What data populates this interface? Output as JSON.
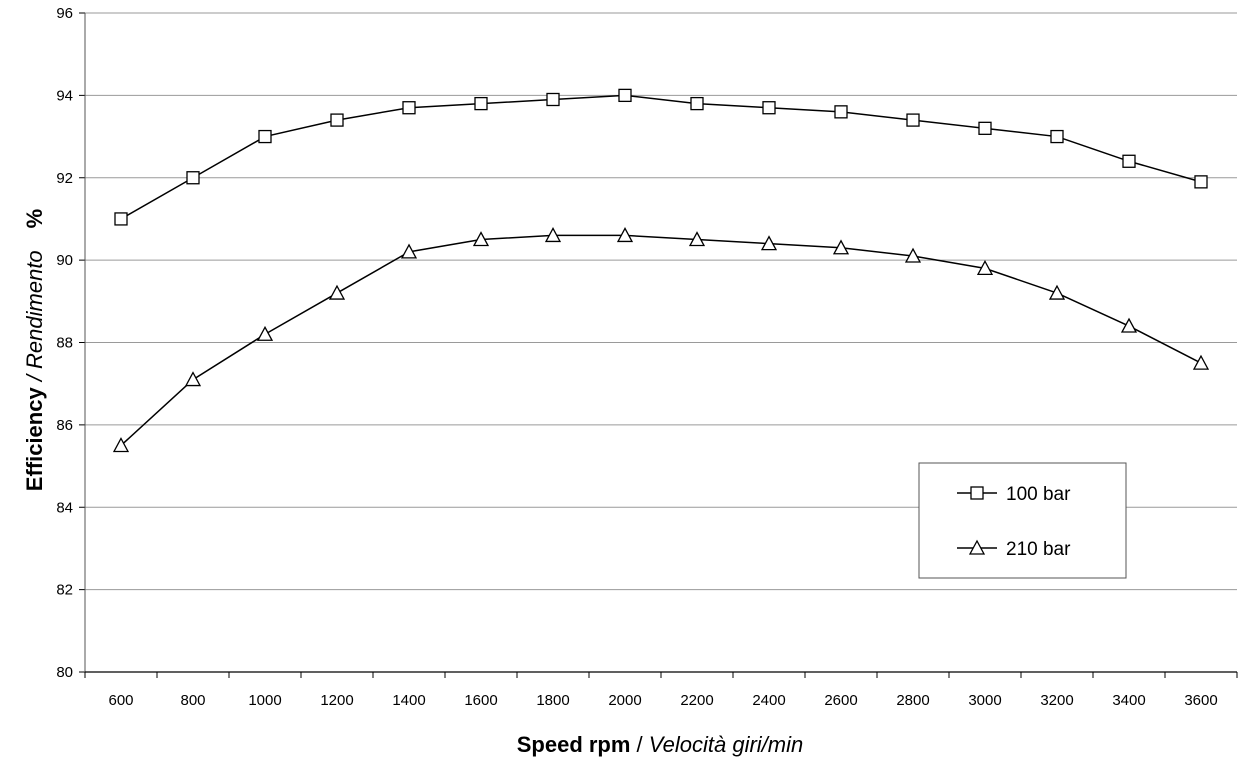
{
  "chart_data": {
    "type": "line",
    "title": "",
    "xlabel": {
      "main": "Speed rpm",
      "separator": " / ",
      "sub": "Velocità giri/min"
    },
    "ylabel": {
      "main": "Efficiency",
      "separator": "  / ",
      "sub": "Rendimento",
      "unit": "%"
    },
    "categories": [
      "600",
      "800",
      "1000",
      "1200",
      "1400",
      "1600",
      "1800",
      "2000",
      "2200",
      "2400",
      "2600",
      "2800",
      "3000",
      "3200",
      "3400",
      "3600"
    ],
    "ylim": [
      80,
      96
    ],
    "yticks": [
      80,
      82,
      84,
      86,
      88,
      90,
      92,
      94,
      96
    ],
    "grid": {
      "horizontal": true,
      "vertical": false
    },
    "legend": {
      "position": "bottom-right"
    },
    "series": [
      {
        "name": "100 bar",
        "marker": "square",
        "values": [
          91.0,
          92.0,
          93.0,
          93.4,
          93.7,
          93.8,
          93.9,
          94.0,
          93.8,
          93.7,
          93.6,
          93.4,
          93.2,
          93.0,
          92.4,
          91.9
        ]
      },
      {
        "name": "210 bar",
        "marker": "triangle",
        "values": [
          85.5,
          87.1,
          88.2,
          89.2,
          90.2,
          90.5,
          90.6,
          90.6,
          90.5,
          90.4,
          90.3,
          90.1,
          89.8,
          89.2,
          88.4,
          87.5
        ]
      }
    ],
    "colors": {
      "line": "#000000",
      "grid": "#9a9a9a",
      "background": "#ffffff"
    }
  }
}
